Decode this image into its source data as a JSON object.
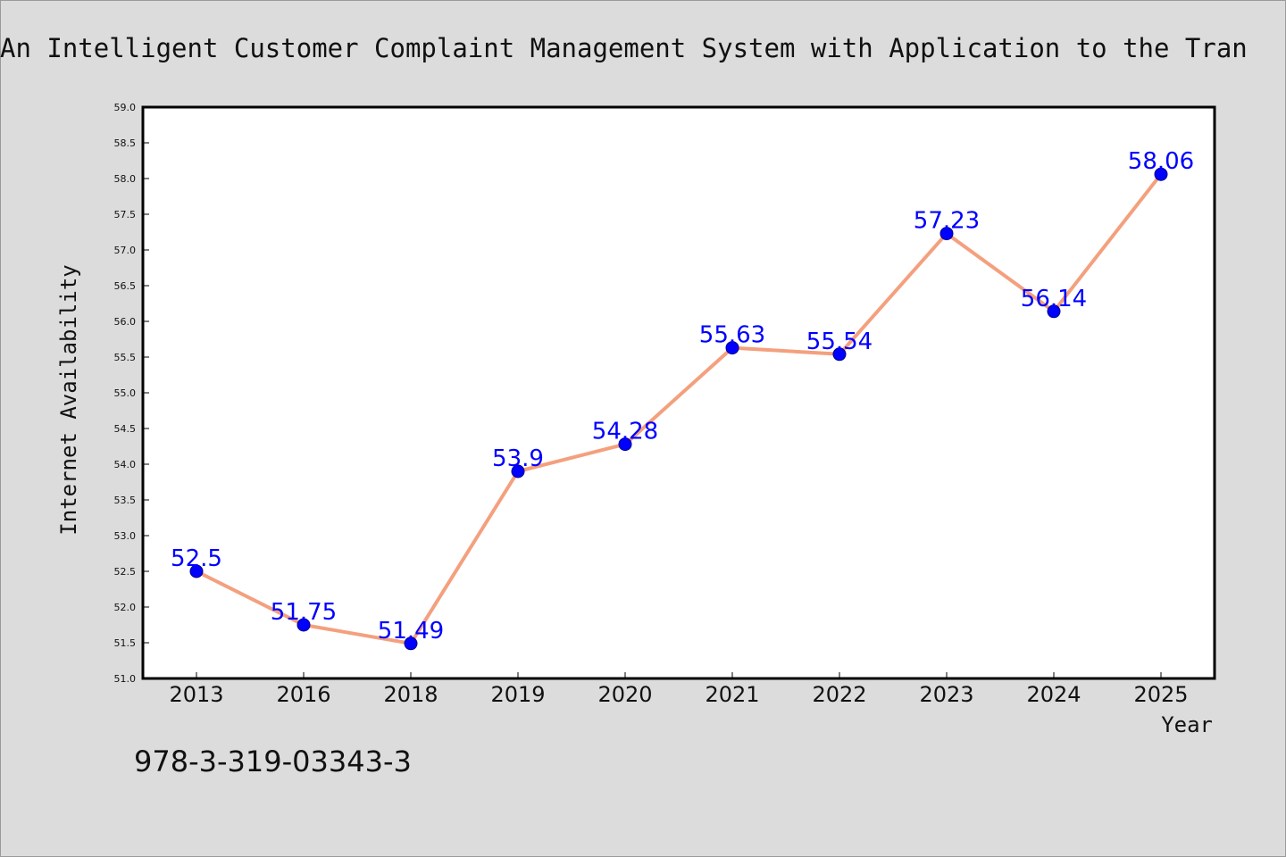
{
  "title": "An Intelligent Customer Complaint Management System with Application to the Tran",
  "footer_text": "978-3-319-03343-3",
  "colors": {
    "background": "#dcdcdc",
    "plot_background": "#ffffff",
    "line": "#f4a07e",
    "marker": "#0000ff",
    "data_label": "#0000ff"
  },
  "chart_data": {
    "type": "line",
    "title": "An Intelligent Customer Complaint Management System with Application to the Tran",
    "xlabel": "Year",
    "ylabel": "Internet Availability",
    "categories": [
      "2013",
      "2016",
      "2018",
      "2019",
      "2020",
      "2021",
      "2022",
      "2023",
      "2024",
      "2025"
    ],
    "series": [
      {
        "values": [
          52.5,
          51.75,
          51.49,
          53.9,
          54.28,
          55.63,
          55.54,
          57.23,
          56.14,
          58.06
        ],
        "labels": [
          "52.5",
          "51.75",
          "51.49",
          "53.9",
          "54.28",
          "55.63",
          "55.54",
          "57.23",
          "56.14",
          "58.06"
        ]
      }
    ],
    "ylim": [
      51.0,
      59.0
    ],
    "yticks": [
      "51.0",
      "51.5",
      "52.0",
      "52.5",
      "53.0",
      "53.5",
      "54.0",
      "54.5",
      "55.0",
      "55.5",
      "56.0",
      "56.5",
      "57.0",
      "57.5",
      "58.0",
      "58.5",
      "59.0"
    ],
    "grid": false,
    "legend": "none",
    "marker": "circle"
  }
}
